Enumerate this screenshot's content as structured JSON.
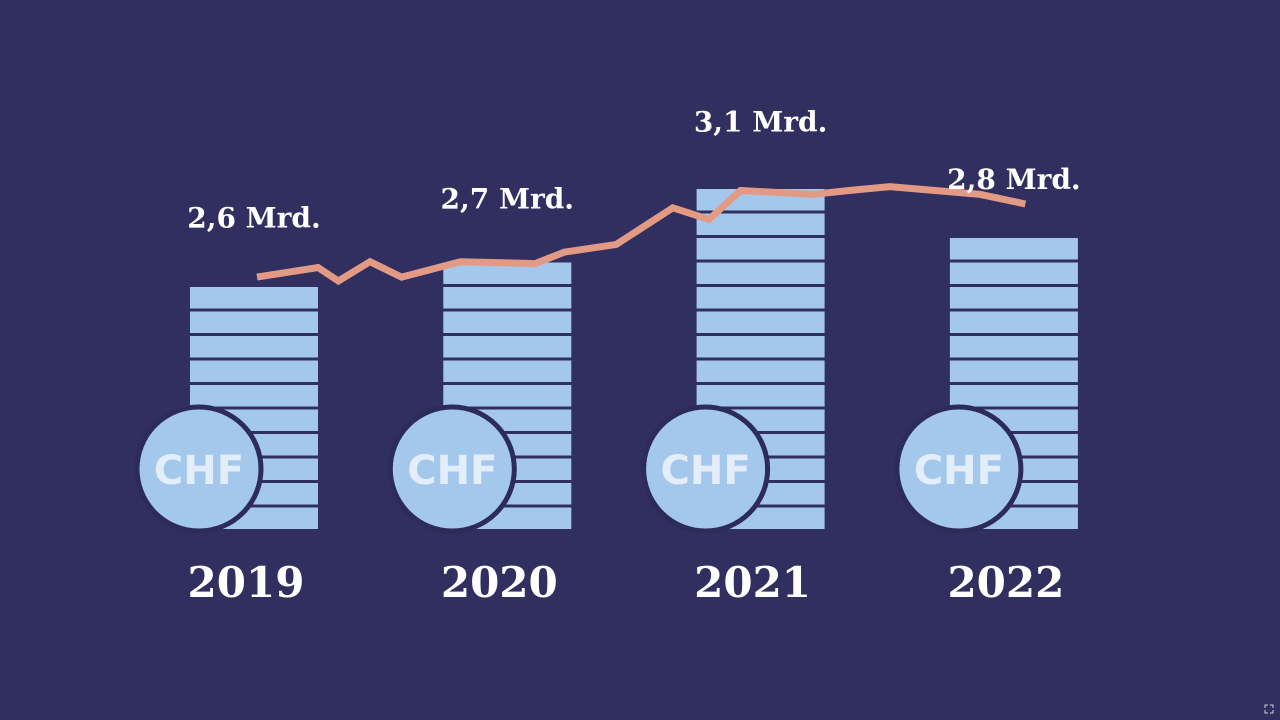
{
  "colors": {
    "background": "#302f5f",
    "bar_fill": "#a4c8ec",
    "coin_fill": "#a4c8ec",
    "coin_border": "#2c2b5a",
    "trend_line": "#e39a84",
    "text": "#ffffff"
  },
  "coin_label": "CHF",
  "chart_data": {
    "type": "bar",
    "title": "",
    "xlabel": "",
    "ylabel": "",
    "categories": [
      "2019",
      "2020",
      "2021",
      "2022"
    ],
    "values": [
      2.6,
      2.7,
      3.1,
      2.8
    ],
    "value_labels": [
      "2,6 Mrd.",
      "2,7 Mrd.",
      "3,1 Mrd.",
      "2,8 Mrd."
    ],
    "unit": "Mrd. CHF",
    "ylim": [
      0,
      3.5
    ],
    "grid": false,
    "legend": "none",
    "trend_line": {
      "x": [
        0.0,
        0.27,
        0.36,
        0.5,
        0.64,
        0.9,
        1.23,
        1.36,
        1.59,
        1.84,
        2.0,
        2.14,
        2.46,
        2.62,
        2.8,
        3.0,
        3.2,
        3.4
      ],
      "y": [
        2.55,
        2.6,
        2.53,
        2.63,
        2.55,
        2.63,
        2.62,
        2.68,
        2.72,
        2.91,
        2.85,
        3.0,
        2.98,
        3.0,
        3.02,
        3.0,
        2.98,
        2.93
      ]
    }
  }
}
